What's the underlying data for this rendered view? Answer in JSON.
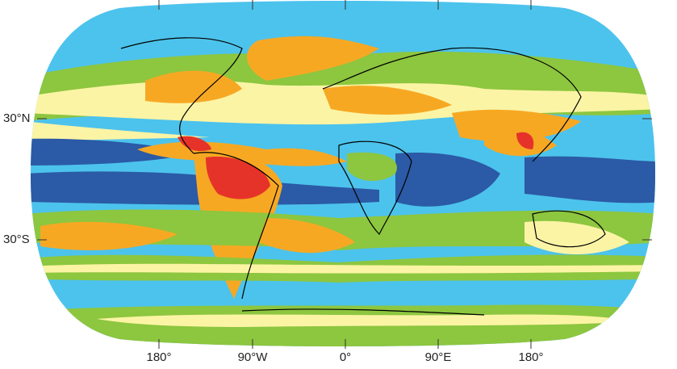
{
  "x_axis_labels": [
    "180°",
    "90°W",
    "0°",
    "90°E",
    "180°"
  ],
  "y_axis_labels": [
    "30°N",
    "30°S"
  ]
}
